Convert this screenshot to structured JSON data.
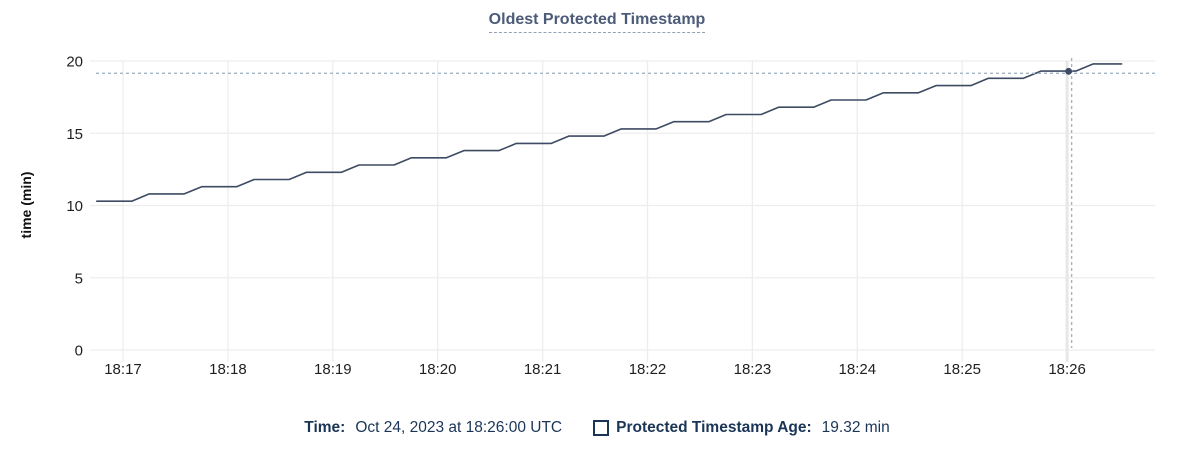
{
  "title": "Oldest Protected Timestamp",
  "colors": {
    "title_text": "#4c5c78",
    "tick_label": "#1f1f1f",
    "axis_title": "#111111",
    "grid": "#ededed",
    "hover_column": "#e7e7e7",
    "series_line": "#3d4b63",
    "crosshair": "#a3b5c5",
    "legend_text": "#1b3556"
  },
  "chart_data": {
    "type": "line",
    "title": "Oldest Protected Timestamp",
    "xlabel": "",
    "ylabel": "time (min)",
    "grid": true,
    "ylim": [
      0,
      20
    ],
    "y_ticks": [
      0,
      5,
      10,
      15,
      20
    ],
    "x_ticks": [
      {
        "label": "18:17",
        "minute": 17
      },
      {
        "label": "18:18",
        "minute": 18
      },
      {
        "label": "18:19",
        "minute": 19
      },
      {
        "label": "18:20",
        "minute": 20
      },
      {
        "label": "18:21",
        "minute": 21
      },
      {
        "label": "18:22",
        "minute": 22
      },
      {
        "label": "18:23",
        "minute": 23
      },
      {
        "label": "18:24",
        "minute": 24
      },
      {
        "label": "18:25",
        "minute": 25
      },
      {
        "label": "18:26",
        "minute": 26
      }
    ],
    "x_range_minutes": [
      16.72,
      26.55
    ],
    "series": [
      {
        "name": "Protected Timestamp Age",
        "unit": "min",
        "points": [
          [
            16.75,
            10.3
          ],
          [
            17.083,
            10.3
          ],
          [
            17.25,
            10.8
          ],
          [
            17.583,
            10.8
          ],
          [
            17.75,
            11.3
          ],
          [
            18.083,
            11.3
          ],
          [
            18.25,
            11.8
          ],
          [
            18.583,
            11.8
          ],
          [
            18.75,
            12.3
          ],
          [
            19.083,
            12.3
          ],
          [
            19.25,
            12.8
          ],
          [
            19.583,
            12.8
          ],
          [
            19.75,
            13.3
          ],
          [
            20.083,
            13.3
          ],
          [
            20.25,
            13.8
          ],
          [
            20.583,
            13.8
          ],
          [
            20.75,
            14.3
          ],
          [
            21.083,
            14.3
          ],
          [
            21.25,
            14.8
          ],
          [
            21.583,
            14.8
          ],
          [
            21.75,
            15.3
          ],
          [
            22.083,
            15.3
          ],
          [
            22.25,
            15.8
          ],
          [
            22.583,
            15.8
          ],
          [
            22.75,
            16.3
          ],
          [
            23.083,
            16.3
          ],
          [
            23.25,
            16.8
          ],
          [
            23.583,
            16.8
          ],
          [
            23.75,
            17.3
          ],
          [
            24.083,
            17.3
          ],
          [
            24.25,
            17.8
          ],
          [
            24.583,
            17.8
          ],
          [
            24.75,
            18.3
          ],
          [
            25.083,
            18.3
          ],
          [
            25.25,
            18.8
          ],
          [
            25.583,
            18.8
          ],
          [
            25.75,
            19.3
          ],
          [
            26.083,
            19.3
          ],
          [
            26.25,
            19.8
          ],
          [
            26.52,
            19.8
          ]
        ]
      }
    ],
    "hover_point": {
      "minute": 26.0,
      "value": 19.32,
      "time_label": "18:26",
      "crosshair": true
    },
    "legend_position": "bottom"
  },
  "legend": {
    "time_label": "Time:",
    "time_value": "Oct 24, 2023 at 18:26:00 UTC",
    "series_label": "Protected Timestamp Age:",
    "series_value": "19.32 min"
  }
}
